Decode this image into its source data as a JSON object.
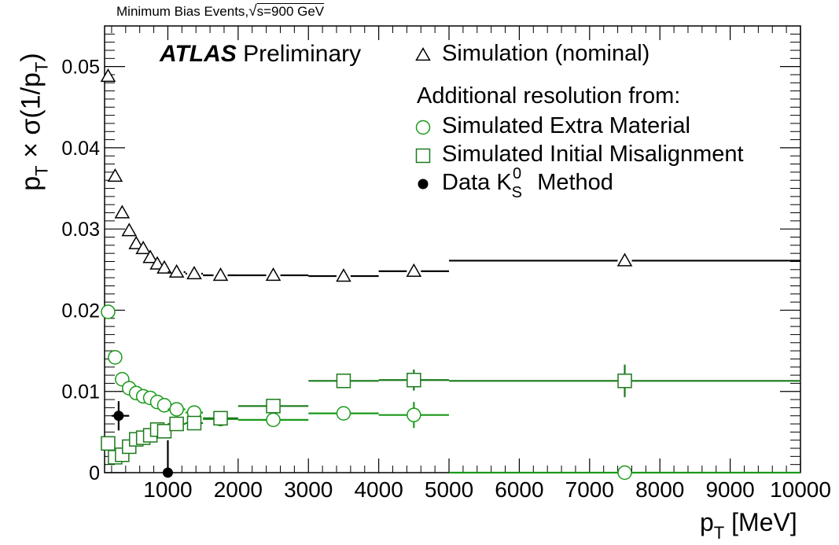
{
  "header": {
    "top_text": "Minimum Bias Events,",
    "energy": "s=900 GeV"
  },
  "experiment": "ATLAS",
  "status": "Preliminary",
  "legend": {
    "title": "Additional resolution from:",
    "items": [
      {
        "label": "Simulation (nominal)",
        "marker": "open-triangle",
        "color": "#000000"
      },
      {
        "label": "Simulated Extra Material",
        "marker": "open-circle",
        "color": "#1a9a1a"
      },
      {
        "label": "Simulated Initial Misalignment",
        "marker": "open-square",
        "color": "#1a7a1a"
      },
      {
        "label": "Data K",
        "label_suffix": "Method",
        "marker": "filled-circle",
        "color": "#000000"
      }
    ]
  },
  "chart_data": {
    "type": "scatter",
    "xlabel": "p_T [MeV]",
    "ylabel": "p_T × σ(1/p_T)",
    "xlim": [
      100,
      10000
    ],
    "ylim": [
      0,
      0.055
    ],
    "x_ticks": [
      1000,
      2000,
      3000,
      4000,
      5000,
      6000,
      7000,
      8000,
      9000,
      10000
    ],
    "y_ticks": [
      0,
      0.01,
      0.02,
      0.03,
      0.04,
      0.05
    ],
    "y_tick_labels": [
      "0",
      "0.01",
      "0.02",
      "0.03",
      "0.04",
      "0.05"
    ],
    "grid": false,
    "series": [
      {
        "name": "Simulation (nominal)",
        "marker": "open-triangle",
        "color": "#000000",
        "points": [
          {
            "x": 150,
            "y": 0.0488,
            "xlo": 100,
            "xhi": 200
          },
          {
            "x": 250,
            "y": 0.0365,
            "xlo": 200,
            "xhi": 300
          },
          {
            "x": 350,
            "y": 0.032,
            "xlo": 300,
            "xhi": 400
          },
          {
            "x": 450,
            "y": 0.0298,
            "xlo": 400,
            "xhi": 500
          },
          {
            "x": 550,
            "y": 0.0282,
            "xlo": 500,
            "xhi": 600
          },
          {
            "x": 650,
            "y": 0.0276,
            "xlo": 600,
            "xhi": 700
          },
          {
            "x": 750,
            "y": 0.0265,
            "xlo": 700,
            "xhi": 800
          },
          {
            "x": 850,
            "y": 0.0257,
            "xlo": 800,
            "xhi": 900
          },
          {
            "x": 950,
            "y": 0.0252,
            "xlo": 900,
            "xhi": 1000
          },
          {
            "x": 1125,
            "y": 0.0247,
            "xlo": 1000,
            "xhi": 1250
          },
          {
            "x": 1375,
            "y": 0.0245,
            "xlo": 1250,
            "xhi": 1500
          },
          {
            "x": 1750,
            "y": 0.0243,
            "xlo": 1500,
            "xhi": 2000
          },
          {
            "x": 2500,
            "y": 0.0243,
            "xlo": 2000,
            "xhi": 3000
          },
          {
            "x": 3500,
            "y": 0.0242,
            "xlo": 3000,
            "xhi": 4000
          },
          {
            "x": 4500,
            "y": 0.0248,
            "xlo": 4000,
            "xhi": 5000
          },
          {
            "x": 7500,
            "y": 0.0261,
            "xlo": 5000,
            "xhi": 10000
          }
        ]
      },
      {
        "name": "Simulated Extra Material",
        "marker": "open-circle",
        "color": "#1a9a1a",
        "points": [
          {
            "x": 150,
            "y": 0.0198,
            "xlo": 100,
            "xhi": 200
          },
          {
            "x": 250,
            "y": 0.0142,
            "xlo": 200,
            "xhi": 300
          },
          {
            "x": 350,
            "y": 0.0115,
            "xlo": 300,
            "xhi": 400
          },
          {
            "x": 450,
            "y": 0.0104,
            "xlo": 400,
            "xhi": 500
          },
          {
            "x": 550,
            "y": 0.0098,
            "xlo": 500,
            "xhi": 600
          },
          {
            "x": 650,
            "y": 0.0094,
            "xlo": 600,
            "xhi": 700
          },
          {
            "x": 750,
            "y": 0.0092,
            "xlo": 700,
            "xhi": 800
          },
          {
            "x": 850,
            "y": 0.0087,
            "xlo": 800,
            "xhi": 900
          },
          {
            "x": 950,
            "y": 0.0083,
            "xlo": 900,
            "xhi": 1000
          },
          {
            "x": 1125,
            "y": 0.0078,
            "xlo": 1000,
            "xhi": 1250
          },
          {
            "x": 1375,
            "y": 0.0074,
            "xlo": 1250,
            "xhi": 1500
          },
          {
            "x": 1750,
            "y": 0.0066,
            "xlo": 1500,
            "xhi": 2000
          },
          {
            "x": 2500,
            "y": 0.0065,
            "xlo": 2000,
            "xhi": 3000
          },
          {
            "x": 3500,
            "y": 0.0073,
            "xlo": 3000,
            "xhi": 4000,
            "yerr": 0.0008
          },
          {
            "x": 4500,
            "y": 0.0071,
            "xlo": 4000,
            "xhi": 5000,
            "yerr": 0.0016
          },
          {
            "x": 7500,
            "y": 0.0,
            "xlo": 5000,
            "xhi": 10000
          }
        ]
      },
      {
        "name": "Simulated Initial Misalignment",
        "marker": "open-square",
        "color": "#1a7a1a",
        "points": [
          {
            "x": 150,
            "y": 0.0036,
            "xlo": 100,
            "xhi": 200,
            "yerr": 0.0008
          },
          {
            "x": 250,
            "y": 0.0019,
            "xlo": 200,
            "xhi": 300,
            "yerr": 0.0005
          },
          {
            "x": 350,
            "y": 0.0022,
            "xlo": 300,
            "xhi": 400
          },
          {
            "x": 450,
            "y": 0.0032,
            "xlo": 400,
            "xhi": 500
          },
          {
            "x": 550,
            "y": 0.0041,
            "xlo": 500,
            "xhi": 600
          },
          {
            "x": 650,
            "y": 0.0043,
            "xlo": 600,
            "xhi": 700
          },
          {
            "x": 750,
            "y": 0.0046,
            "xlo": 700,
            "xhi": 800
          },
          {
            "x": 850,
            "y": 0.0053,
            "xlo": 800,
            "xhi": 900
          },
          {
            "x": 950,
            "y": 0.0051,
            "xlo": 900,
            "xhi": 1000
          },
          {
            "x": 1125,
            "y": 0.006,
            "xlo": 1000,
            "xhi": 1250
          },
          {
            "x": 1375,
            "y": 0.0061,
            "xlo": 1250,
            "xhi": 1500
          },
          {
            "x": 1750,
            "y": 0.0067,
            "xlo": 1500,
            "xhi": 2000
          },
          {
            "x": 2500,
            "y": 0.0082,
            "xlo": 2000,
            "xhi": 3000
          },
          {
            "x": 3500,
            "y": 0.0113,
            "xlo": 3000,
            "xhi": 4000
          },
          {
            "x": 4500,
            "y": 0.0114,
            "xlo": 4000,
            "xhi": 5000,
            "yerr": 0.0013
          },
          {
            "x": 7500,
            "y": 0.0113,
            "xlo": 5000,
            "xhi": 10000,
            "yerr": 0.002
          }
        ]
      },
      {
        "name": "Data K_S^0 Method",
        "marker": "filled-circle",
        "color": "#000000",
        "points": [
          {
            "x": 300,
            "y": 0.007,
            "xlo": 200,
            "xhi": 450,
            "yerr": 0.0018
          },
          {
            "x": 1000,
            "y": 0.0,
            "xlo": 1000,
            "xhi": 1000,
            "yerr": 0.004
          }
        ]
      }
    ]
  }
}
